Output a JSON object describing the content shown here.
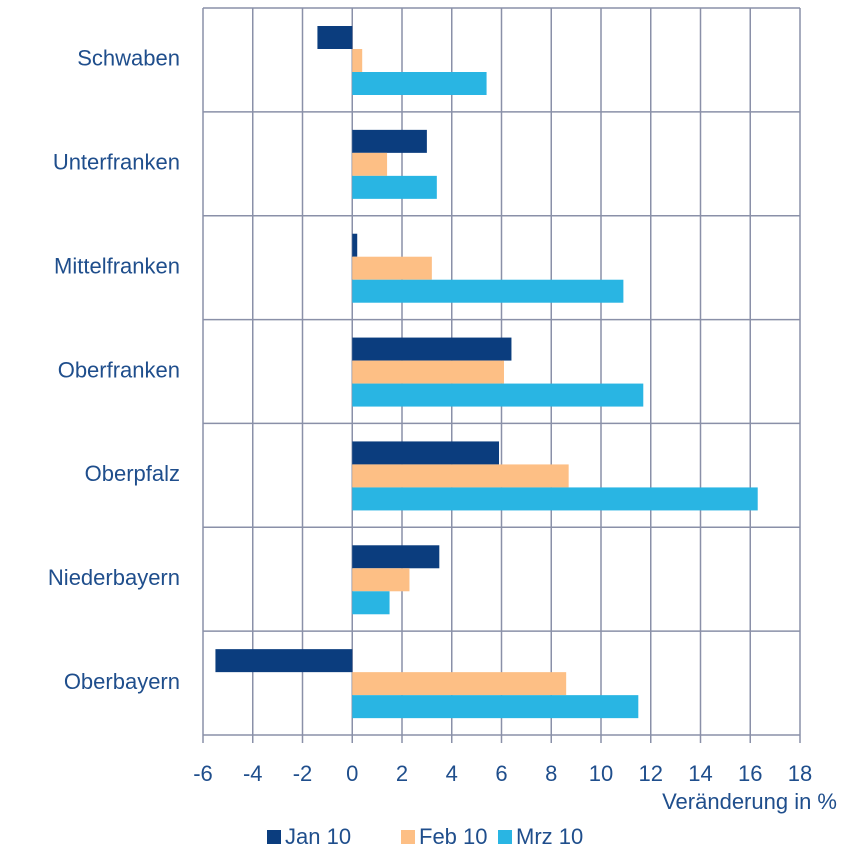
{
  "chart_data": {
    "type": "barh",
    "categories": [
      "Schwaben",
      "Unterfranken",
      "Mittelfranken",
      "Oberfranken",
      "Oberpfalz",
      "Niederbayern",
      "Oberbayern"
    ],
    "series": [
      {
        "name": "Jan 10",
        "color": "#0b3d7e",
        "values": [
          -1.4,
          3.0,
          0.2,
          6.4,
          5.9,
          3.5,
          -5.5
        ]
      },
      {
        "name": "Feb 10",
        "color": "#fdbf85",
        "values": [
          0.4,
          1.4,
          3.2,
          6.1,
          8.7,
          2.3,
          8.6
        ]
      },
      {
        "name": "Mrz 10",
        "color": "#29b5e3",
        "values": [
          5.4,
          3.4,
          10.9,
          11.7,
          16.3,
          1.5,
          11.5
        ]
      }
    ],
    "xlabel": "Veränderung in %",
    "xlim": [
      -6,
      18
    ],
    "xticks": [
      -6,
      -4,
      -2,
      0,
      2,
      4,
      6,
      8,
      10,
      12,
      14,
      16,
      18
    ],
    "grid": true,
    "legend": "bottom"
  }
}
